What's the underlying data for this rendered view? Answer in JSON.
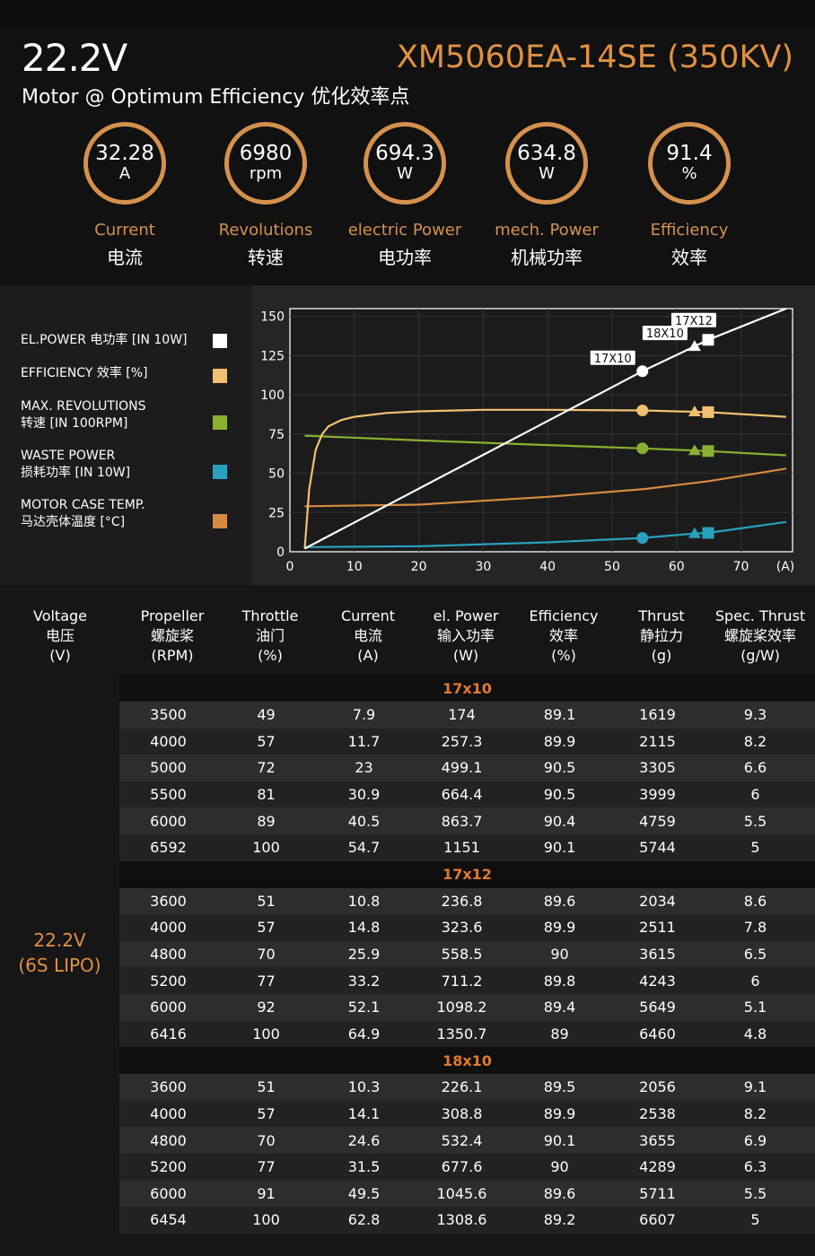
{
  "header": {
    "voltage": "22.2V",
    "model": "XM5060EA-14SE (350KV)",
    "subtitle": "Motor @ Optimum Efficiency  优化效率点",
    "gauges": [
      {
        "value": "32.28",
        "unit": "A",
        "label": "Current",
        "label_cn": "电流"
      },
      {
        "value": "6980",
        "unit": "rpm",
        "label": "Revolutions",
        "label_cn": "转速"
      },
      {
        "value": "694.3",
        "unit": "W",
        "label": "electric Power",
        "label_cn": "电功率"
      },
      {
        "value": "634.8",
        "unit": "W",
        "label": "mech. Power",
        "label_cn": "机械功率"
      },
      {
        "value": "91.4",
        "unit": "%",
        "label": "Efficiency",
        "label_cn": "效率"
      }
    ]
  },
  "legend": [
    {
      "line1": "EL.POWER 电功率 [IN 10W]",
      "line2": "",
      "color": "#ffffff"
    },
    {
      "line1": "EFFICIENCY 效率 [%]",
      "line2": "",
      "color": "#f0c070"
    },
    {
      "line1": "MAX. REVOLUTIONS",
      "line2": "转速 [IN 100RPM]",
      "color": "#8ab030"
    },
    {
      "line1": "WASTE POWER",
      "line2": "损耗功率 [IN 10W]",
      "color": "#2aa0c0"
    },
    {
      "line1": "MOTOR CASE TEMP.",
      "line2": "马达壳体温度 [°C]",
      "color": "#d88a40"
    }
  ],
  "chart_data": {
    "type": "line",
    "xlabel": "(A)",
    "ylabel": "",
    "xlim": [
      0,
      78
    ],
    "ylim": [
      0,
      155
    ],
    "xticks": [
      0,
      10,
      20,
      30,
      40,
      50,
      60,
      70
    ],
    "yticks": [
      0,
      25,
      50,
      75,
      100,
      125,
      150
    ],
    "series": [
      {
        "name": "EL.POWER 电功率 [IN 10W]",
        "color": "#ffffff",
        "x": [
          2.3,
          54.7,
          62.8,
          64.9,
          77
        ],
        "y": [
          2,
          115.1,
          130.9,
          135.1,
          160
        ]
      },
      {
        "name": "EFFICIENCY 效率 [%]",
        "color": "#f0c070",
        "x": [
          2.3,
          3,
          4,
          5,
          6,
          8,
          10,
          15,
          20,
          30,
          40,
          54.7,
          62.8,
          64.9,
          77
        ],
        "y": [
          2,
          40,
          65,
          75,
          80,
          84,
          86,
          88.5,
          89.5,
          90.5,
          90.5,
          90.1,
          89.2,
          89,
          86
        ]
      },
      {
        "name": "MAX. REVOLUTIONS 转速 [IN 100RPM]",
        "color": "#8ab030",
        "x": [
          2.3,
          20,
          40,
          54.7,
          62.8,
          64.9,
          77
        ],
        "y": [
          74,
          71,
          68,
          65.9,
          64.5,
          64.2,
          61.5
        ]
      },
      {
        "name": "WASTE POWER 损耗功率 [IN 10W]",
        "color": "#2aa0c0",
        "x": [
          2.3,
          20,
          40,
          54.7,
          62.8,
          64.9,
          77
        ],
        "y": [
          3,
          3.5,
          6,
          8.8,
          11.6,
          12,
          19
        ]
      },
      {
        "name": "MOTOR CASE TEMP. 马达壳体温度 [°C]",
        "color": "#d88a40",
        "x": [
          2.3,
          20,
          40,
          55,
          65,
          77
        ],
        "y": [
          29,
          30,
          35,
          40,
          45,
          53
        ]
      }
    ],
    "markers": [
      {
        "label": "17X10",
        "x": 54.7,
        "shape": "circle"
      },
      {
        "label": "18X10",
        "x": 62.8,
        "shape": "triangle"
      },
      {
        "label": "17X12",
        "x": 64.9,
        "shape": "square"
      }
    ],
    "marker_values": {
      "elpower": [
        115.1,
        130.9,
        135.1
      ],
      "efficiency": [
        90.1,
        89.2,
        89
      ],
      "revolutions": [
        65.9,
        64.5,
        64.2
      ],
      "waste": [
        8.8,
        11.6,
        12
      ]
    }
  },
  "table": {
    "voltage_label": "22.2V",
    "battery_label": "(6S LIPO)",
    "headers": [
      {
        "en": "Voltage",
        "cn": "电压",
        "unit": "(V)"
      },
      {
        "en": "Propeller",
        "cn": "螺旋桨",
        "unit": "(RPM)"
      },
      {
        "en": "Throttle",
        "cn": "油门",
        "unit": "(%)"
      },
      {
        "en": "Current",
        "cn": "电流",
        "unit": "(A)"
      },
      {
        "en": "el. Power",
        "cn": "输入功率",
        "unit": "(W)"
      },
      {
        "en": "Efficiency",
        "cn": "效率",
        "unit": "(%)"
      },
      {
        "en": "Thrust",
        "cn": "静拉力",
        "unit": "(g)"
      },
      {
        "en": "Spec. Thrust",
        "cn": "螺旋桨效率",
        "unit": "(g/W)"
      }
    ],
    "groups": [
      {
        "name": "17x10",
        "rows": [
          [
            "3500",
            "49",
            "7.9",
            "174",
            "89.1",
            "1619",
            "9.3"
          ],
          [
            "4000",
            "57",
            "11.7",
            "257.3",
            "89.9",
            "2115",
            "8.2"
          ],
          [
            "5000",
            "72",
            "23",
            "499.1",
            "90.5",
            "3305",
            "6.6"
          ],
          [
            "5500",
            "81",
            "30.9",
            "664.4",
            "90.5",
            "3999",
            "6"
          ],
          [
            "6000",
            "89",
            "40.5",
            "863.7",
            "90.4",
            "4759",
            "5.5"
          ],
          [
            "6592",
            "100",
            "54.7",
            "1151",
            "90.1",
            "5744",
            "5"
          ]
        ]
      },
      {
        "name": "17x12",
        "rows": [
          [
            "3600",
            "51",
            "10.8",
            "236.8",
            "89.6",
            "2034",
            "8.6"
          ],
          [
            "4000",
            "57",
            "14.8",
            "323.6",
            "89.9",
            "2511",
            "7.8"
          ],
          [
            "4800",
            "70",
            "25.9",
            "558.5",
            "90",
            "3615",
            "6.5"
          ],
          [
            "5200",
            "77",
            "33.2",
            "711.2",
            "89.8",
            "4243",
            "6"
          ],
          [
            "6000",
            "92",
            "52.1",
            "1098.2",
            "89.4",
            "5649",
            "5.1"
          ],
          [
            "6416",
            "100",
            "64.9",
            "1350.7",
            "89",
            "6460",
            "4.8"
          ]
        ]
      },
      {
        "name": "18x10",
        "rows": [
          [
            "3600",
            "51",
            "10.3",
            "226.1",
            "89.5",
            "2056",
            "9.1"
          ],
          [
            "4000",
            "57",
            "14.1",
            "308.8",
            "89.9",
            "2538",
            "8.2"
          ],
          [
            "4800",
            "70",
            "24.6",
            "532.4",
            "90.1",
            "3655",
            "6.9"
          ],
          [
            "5200",
            "77",
            "31.5",
            "677.6",
            "90",
            "4289",
            "6.3"
          ],
          [
            "6000",
            "91",
            "49.5",
            "1045.6",
            "89.6",
            "5711",
            "5.5"
          ],
          [
            "6454",
            "100",
            "62.8",
            "1308.6",
            "89.2",
            "6607",
            "5"
          ]
        ]
      }
    ]
  }
}
